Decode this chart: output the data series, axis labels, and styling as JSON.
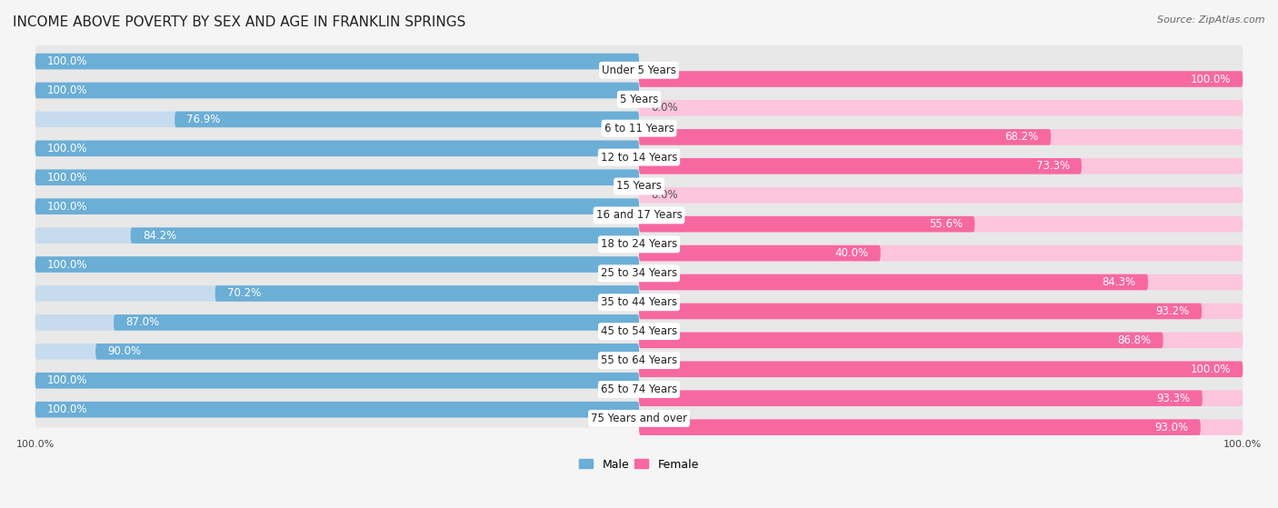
{
  "title": "INCOME ABOVE POVERTY BY SEX AND AGE IN FRANKLIN SPRINGS",
  "source": "Source: ZipAtlas.com",
  "categories": [
    "Under 5 Years",
    "5 Years",
    "6 to 11 Years",
    "12 to 14 Years",
    "15 Years",
    "16 and 17 Years",
    "18 to 24 Years",
    "25 to 34 Years",
    "35 to 44 Years",
    "45 to 54 Years",
    "55 to 64 Years",
    "65 to 74 Years",
    "75 Years and over"
  ],
  "male_values": [
    100.0,
    100.0,
    76.9,
    100.0,
    100.0,
    100.0,
    84.2,
    100.0,
    70.2,
    87.0,
    90.0,
    100.0,
    100.0
  ],
  "female_values": [
    100.0,
    0.0,
    68.2,
    73.3,
    0.0,
    55.6,
    40.0,
    84.3,
    93.2,
    86.8,
    100.0,
    93.3,
    93.0
  ],
  "male_color": "#6BAED6",
  "male_bg_color": "#C6DCEE",
  "female_color": "#F768A1",
  "female_bg_color": "#FCC5DC",
  "row_bg_color": "#E8E8E8",
  "background_color": "#F5F5F5",
  "label_bg_color": "#FFFFFF",
  "title_fontsize": 11,
  "label_fontsize": 8.5,
  "value_fontsize": 8.5,
  "source_fontsize": 8,
  "legend_fontsize": 9
}
